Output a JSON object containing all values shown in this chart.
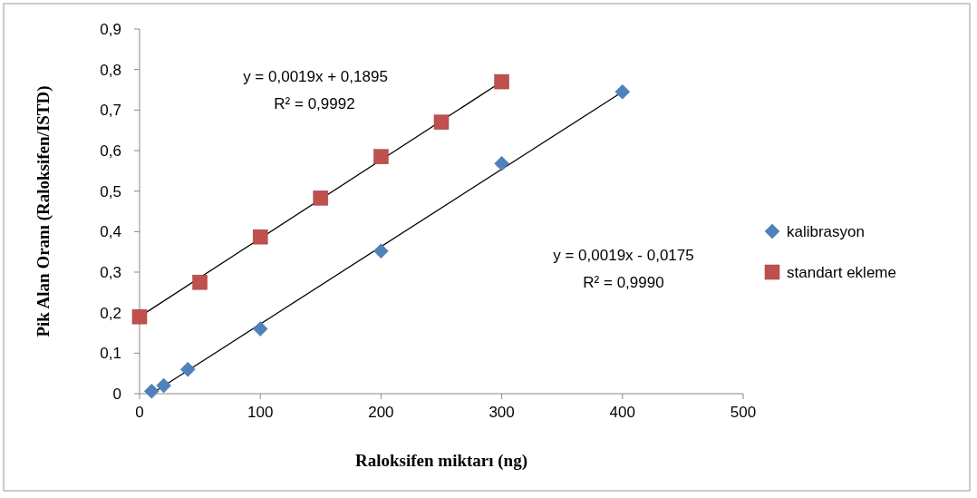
{
  "chart_data": {
    "type": "scatter",
    "xlabel": "Raloksifen miktarı (ng)",
    "ylabel": "Pik Alan Oranı (Raloksifen/ISTD)",
    "xlim": [
      0,
      500
    ],
    "xticks": [
      0,
      100,
      200,
      300,
      400,
      500
    ],
    "ylim": [
      0,
      0.9
    ],
    "yticks": [
      0,
      {
        "value": 0.1,
        "label": "0,1"
      },
      {
        "value": 0.2,
        "label": "0,2"
      },
      {
        "value": 0.3,
        "label": "0,3"
      },
      {
        "value": 0.4,
        "label": "0,4"
      },
      {
        "value": 0.5,
        "label": "0,5"
      },
      {
        "value": 0.6,
        "label": "0,6"
      },
      {
        "value": 0.7,
        "label": "0,7"
      },
      {
        "value": 0.8,
        "label": "0,8"
      },
      {
        "value": 0.9,
        "label": "0,9"
      }
    ],
    "grid": false,
    "legend": "right",
    "series": [
      {
        "name": "kalibrasyon",
        "color": "#4f81bd",
        "marker": "diamond",
        "x": [
          10,
          20,
          40,
          100,
          200,
          300,
          400
        ],
        "values": [
          0.006,
          0.02,
          0.06,
          0.16,
          0.352,
          0.568,
          0.745
        ]
      },
      {
        "name": "standart ekleme",
        "color": "#c0504d",
        "marker": "square",
        "x": [
          0,
          50,
          100,
          150,
          200,
          250,
          300
        ],
        "values": [
          0.19,
          0.275,
          0.387,
          0.483,
          0.585,
          0.67,
          0.77
        ]
      },
      {
        "type": "line",
        "color": "#000000",
        "marker": "none",
        "x": [
          10,
          400
        ],
        "values": [
          0,
          0.745
        ]
      },
      {
        "type": "line",
        "color": "#000000",
        "marker": "none",
        "x": [
          0,
          300
        ],
        "values": [
          0.19,
          0.77
        ]
      }
    ],
    "annotations": [
      "y = 0,0019x + 0,1895",
      "R² = 0,9992",
      "y = 0,0019x - 0,0175",
      "R² = 0,9990"
    ]
  }
}
